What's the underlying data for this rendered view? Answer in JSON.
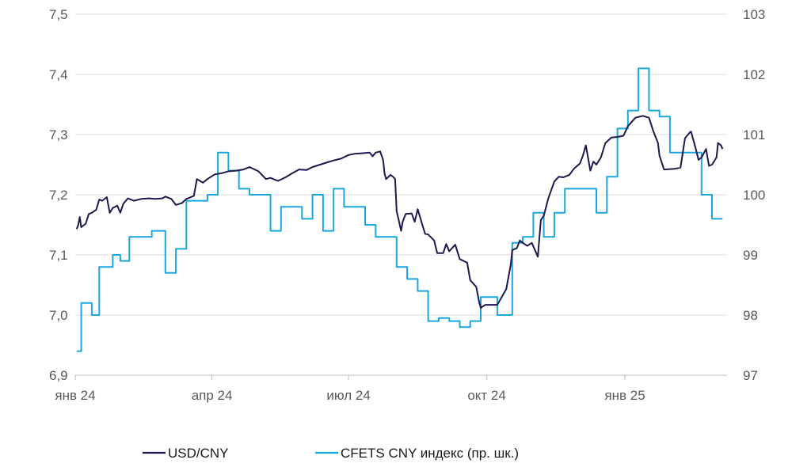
{
  "chart_data": {
    "type": "line",
    "title": "",
    "xlabel": "",
    "ylabel_left": "",
    "ylabel_right": "",
    "grid": true,
    "legend_position": "bottom",
    "left_axis": {
      "ylim": [
        6.9,
        7.5
      ],
      "ticks": [
        "7,5",
        "7,4",
        "7,3",
        "7,2",
        "7,1",
        "7,0",
        "6,9"
      ]
    },
    "right_axis": {
      "ylim": [
        97,
        103
      ],
      "ticks": [
        "103",
        "102",
        "101",
        "100",
        "99",
        "98",
        "97"
      ]
    },
    "x_ticks": [
      {
        "date": "2024-01-01",
        "label": "янв 24"
      },
      {
        "date": "2024-04-01",
        "label": "апр 24"
      },
      {
        "date": "2024-07-01",
        "label": "июл 24"
      },
      {
        "date": "2024-10-01",
        "label": "окт 24"
      },
      {
        "date": "2025-01-01",
        "label": "янв 25"
      }
    ],
    "series": [
      {
        "name": "USD/CNY",
        "axis": "left",
        "color": "#1c1a4d",
        "points": [
          [
            "2024-01-02",
            7.143
          ],
          [
            "2024-01-03",
            7.15
          ],
          [
            "2024-01-04",
            7.163
          ],
          [
            "2024-01-05",
            7.146
          ],
          [
            "2024-01-08",
            7.152
          ],
          [
            "2024-01-10",
            7.168
          ],
          [
            "2024-01-12",
            7.17
          ],
          [
            "2024-01-15",
            7.175
          ],
          [
            "2024-01-17",
            7.192
          ],
          [
            "2024-01-19",
            7.19
          ],
          [
            "2024-01-22",
            7.196
          ],
          [
            "2024-01-24",
            7.17
          ],
          [
            "2024-01-26",
            7.178
          ],
          [
            "2024-01-29",
            7.182
          ],
          [
            "2024-01-31",
            7.17
          ],
          [
            "2024-02-02",
            7.185
          ],
          [
            "2024-02-05",
            7.194
          ],
          [
            "2024-02-09",
            7.19
          ],
          [
            "2024-02-14",
            7.193
          ],
          [
            "2024-02-19",
            7.194
          ],
          [
            "2024-02-23",
            7.193
          ],
          [
            "2024-02-28",
            7.194
          ],
          [
            "2024-03-01",
            7.197
          ],
          [
            "2024-03-05",
            7.193
          ],
          [
            "2024-03-08",
            7.183
          ],
          [
            "2024-03-12",
            7.186
          ],
          [
            "2024-03-15",
            7.193
          ],
          [
            "2024-03-20",
            7.198
          ],
          [
            "2024-03-22",
            7.226
          ],
          [
            "2024-03-26",
            7.22
          ],
          [
            "2024-03-29",
            7.226
          ],
          [
            "2024-04-03",
            7.234
          ],
          [
            "2024-04-08",
            7.236
          ],
          [
            "2024-04-12",
            7.239
          ],
          [
            "2024-04-17",
            7.24
          ],
          [
            "2024-04-22",
            7.242
          ],
          [
            "2024-04-26",
            7.246
          ],
          [
            "2024-05-02",
            7.239
          ],
          [
            "2024-05-07",
            7.226
          ],
          [
            "2024-05-10",
            7.228
          ],
          [
            "2024-05-15",
            7.223
          ],
          [
            "2024-05-20",
            7.229
          ],
          [
            "2024-05-24",
            7.235
          ],
          [
            "2024-05-29",
            7.242
          ],
          [
            "2024-06-03",
            7.241
          ],
          [
            "2024-06-07",
            7.246
          ],
          [
            "2024-06-12",
            7.25
          ],
          [
            "2024-06-17",
            7.254
          ],
          [
            "2024-06-21",
            7.257
          ],
          [
            "2024-06-26",
            7.26
          ],
          [
            "2024-07-01",
            7.266
          ],
          [
            "2024-07-05",
            7.268
          ],
          [
            "2024-07-10",
            7.269
          ],
          [
            "2024-07-15",
            7.27
          ],
          [
            "2024-07-17",
            7.264
          ],
          [
            "2024-07-19",
            7.27
          ],
          [
            "2024-07-22",
            7.272
          ],
          [
            "2024-07-24",
            7.258
          ],
          [
            "2024-07-25",
            7.235
          ],
          [
            "2024-07-26",
            7.226
          ],
          [
            "2024-07-29",
            7.233
          ],
          [
            "2024-07-31",
            7.229
          ],
          [
            "2024-08-01",
            7.226
          ],
          [
            "2024-08-02",
            7.173
          ],
          [
            "2024-08-05",
            7.14
          ],
          [
            "2024-08-06",
            7.155
          ],
          [
            "2024-08-08",
            7.168
          ],
          [
            "2024-08-12",
            7.169
          ],
          [
            "2024-08-14",
            7.155
          ],
          [
            "2024-08-16",
            7.176
          ],
          [
            "2024-08-19",
            7.151
          ],
          [
            "2024-08-21",
            7.135
          ],
          [
            "2024-08-23",
            7.134
          ],
          [
            "2024-08-27",
            7.124
          ],
          [
            "2024-08-29",
            7.103
          ],
          [
            "2024-09-02",
            7.103
          ],
          [
            "2024-09-04",
            7.118
          ],
          [
            "2024-09-06",
            7.106
          ],
          [
            "2024-09-10",
            7.117
          ],
          [
            "2024-09-13",
            7.093
          ],
          [
            "2024-09-18",
            7.087
          ],
          [
            "2024-09-20",
            7.058
          ],
          [
            "2024-09-24",
            7.047
          ],
          [
            "2024-09-26",
            7.021
          ],
          [
            "2024-09-27",
            7.012
          ],
          [
            "2024-09-30",
            7.017
          ],
          [
            "2024-10-08",
            7.017
          ],
          [
            "2024-10-14",
            7.043
          ],
          [
            "2024-10-17",
            7.084
          ],
          [
            "2024-10-18",
            7.108
          ],
          [
            "2024-10-21",
            7.111
          ],
          [
            "2024-10-23",
            7.124
          ],
          [
            "2024-10-25",
            7.12
          ],
          [
            "2024-10-28",
            7.115
          ],
          [
            "2024-10-31",
            7.12
          ],
          [
            "2024-11-04",
            7.097
          ],
          [
            "2024-11-06",
            7.158
          ],
          [
            "2024-11-08",
            7.165
          ],
          [
            "2024-11-11",
            7.194
          ],
          [
            "2024-11-13",
            7.208
          ],
          [
            "2024-11-15",
            7.222
          ],
          [
            "2024-11-18",
            7.23
          ],
          [
            "2024-11-21",
            7.229
          ],
          [
            "2024-11-25",
            7.233
          ],
          [
            "2024-11-28",
            7.243
          ],
          [
            "2024-12-02",
            7.252
          ],
          [
            "2024-12-04",
            7.265
          ],
          [
            "2024-12-06",
            7.282
          ],
          [
            "2024-12-09",
            7.24
          ],
          [
            "2024-12-11",
            7.255
          ],
          [
            "2024-12-13",
            7.25
          ],
          [
            "2024-12-16",
            7.262
          ],
          [
            "2024-12-19",
            7.286
          ],
          [
            "2024-12-23",
            7.295
          ],
          [
            "2024-12-27",
            7.296
          ],
          [
            "2024-12-31",
            7.298
          ],
          [
            "2025-01-03",
            7.314
          ],
          [
            "2025-01-08",
            7.328
          ],
          [
            "2025-01-13",
            7.331
          ],
          [
            "2025-01-17",
            7.328
          ],
          [
            "2025-01-20",
            7.305
          ],
          [
            "2025-01-23",
            7.286
          ],
          [
            "2025-01-24",
            7.265
          ],
          [
            "2025-01-27",
            7.242
          ],
          [
            "2025-02-03",
            7.243
          ],
          [
            "2025-02-07",
            7.245
          ],
          [
            "2025-02-10",
            7.294
          ],
          [
            "2025-02-13",
            7.303
          ],
          [
            "2025-02-14",
            7.305
          ],
          [
            "2025-02-17",
            7.278
          ],
          [
            "2025-02-19",
            7.258
          ],
          [
            "2025-02-21",
            7.262
          ],
          [
            "2025-02-24",
            7.276
          ],
          [
            "2025-02-26",
            7.248
          ],
          [
            "2025-02-28",
            7.25
          ],
          [
            "2025-03-03",
            7.262
          ],
          [
            "2025-03-04",
            7.286
          ],
          [
            "2025-03-06",
            7.282
          ],
          [
            "2025-03-07",
            7.276
          ]
        ]
      },
      {
        "name": "CFETS CNY индекс (пр. шк.)",
        "axis": "right",
        "color": "#1aa7e0",
        "points": [
          [
            "2024-01-02",
            97.4
          ],
          [
            "2024-01-05",
            98.2
          ],
          [
            "2024-01-12",
            98.0
          ],
          [
            "2024-01-17",
            98.8
          ],
          [
            "2024-01-24",
            98.8
          ],
          [
            "2024-01-26",
            99.0
          ],
          [
            "2024-01-31",
            98.9
          ],
          [
            "2024-02-06",
            99.3
          ],
          [
            "2024-02-21",
            99.4
          ],
          [
            "2024-03-01",
            98.7
          ],
          [
            "2024-03-08",
            99.1
          ],
          [
            "2024-03-15",
            99.9
          ],
          [
            "2024-03-29",
            100.0
          ],
          [
            "2024-04-05",
            100.7
          ],
          [
            "2024-04-12",
            100.4
          ],
          [
            "2024-04-19",
            100.1
          ],
          [
            "2024-04-26",
            100.0
          ],
          [
            "2024-05-03",
            100.0
          ],
          [
            "2024-05-10",
            99.4
          ],
          [
            "2024-05-17",
            99.8
          ],
          [
            "2024-05-31",
            99.6
          ],
          [
            "2024-06-07",
            100.0
          ],
          [
            "2024-06-14",
            99.4
          ],
          [
            "2024-06-21",
            100.1
          ],
          [
            "2024-06-28",
            99.8
          ],
          [
            "2024-07-12",
            99.5
          ],
          [
            "2024-07-19",
            99.3
          ],
          [
            "2024-07-26",
            99.3
          ],
          [
            "2024-08-02",
            98.8
          ],
          [
            "2024-08-09",
            98.6
          ],
          [
            "2024-08-16",
            98.4
          ],
          [
            "2024-08-23",
            97.9
          ],
          [
            "2024-08-30",
            97.95
          ],
          [
            "2024-09-06",
            97.9
          ],
          [
            "2024-09-13",
            97.8
          ],
          [
            "2024-09-20",
            97.9
          ],
          [
            "2024-09-27",
            98.3
          ],
          [
            "2024-10-08",
            98.0
          ],
          [
            "2024-10-11",
            98.0
          ],
          [
            "2024-10-18",
            99.2
          ],
          [
            "2024-10-25",
            99.3
          ],
          [
            "2024-11-01",
            99.7
          ],
          [
            "2024-11-08",
            99.3
          ],
          [
            "2024-11-15",
            99.7
          ],
          [
            "2024-11-22",
            100.1
          ],
          [
            "2024-11-29",
            100.1
          ],
          [
            "2024-12-06",
            100.1
          ],
          [
            "2024-12-13",
            99.7
          ],
          [
            "2024-12-20",
            100.3
          ],
          [
            "2024-12-27",
            101.1
          ],
          [
            "2025-01-03",
            101.4
          ],
          [
            "2025-01-10",
            102.1
          ],
          [
            "2025-01-17",
            101.4
          ],
          [
            "2025-01-24",
            101.3
          ],
          [
            "2025-01-31",
            100.7
          ],
          [
            "2025-02-07",
            100.7
          ],
          [
            "2025-02-14",
            100.7
          ],
          [
            "2025-02-21",
            100.0
          ],
          [
            "2025-02-28",
            99.6
          ],
          [
            "2025-03-07",
            99.6
          ]
        ]
      }
    ]
  }
}
